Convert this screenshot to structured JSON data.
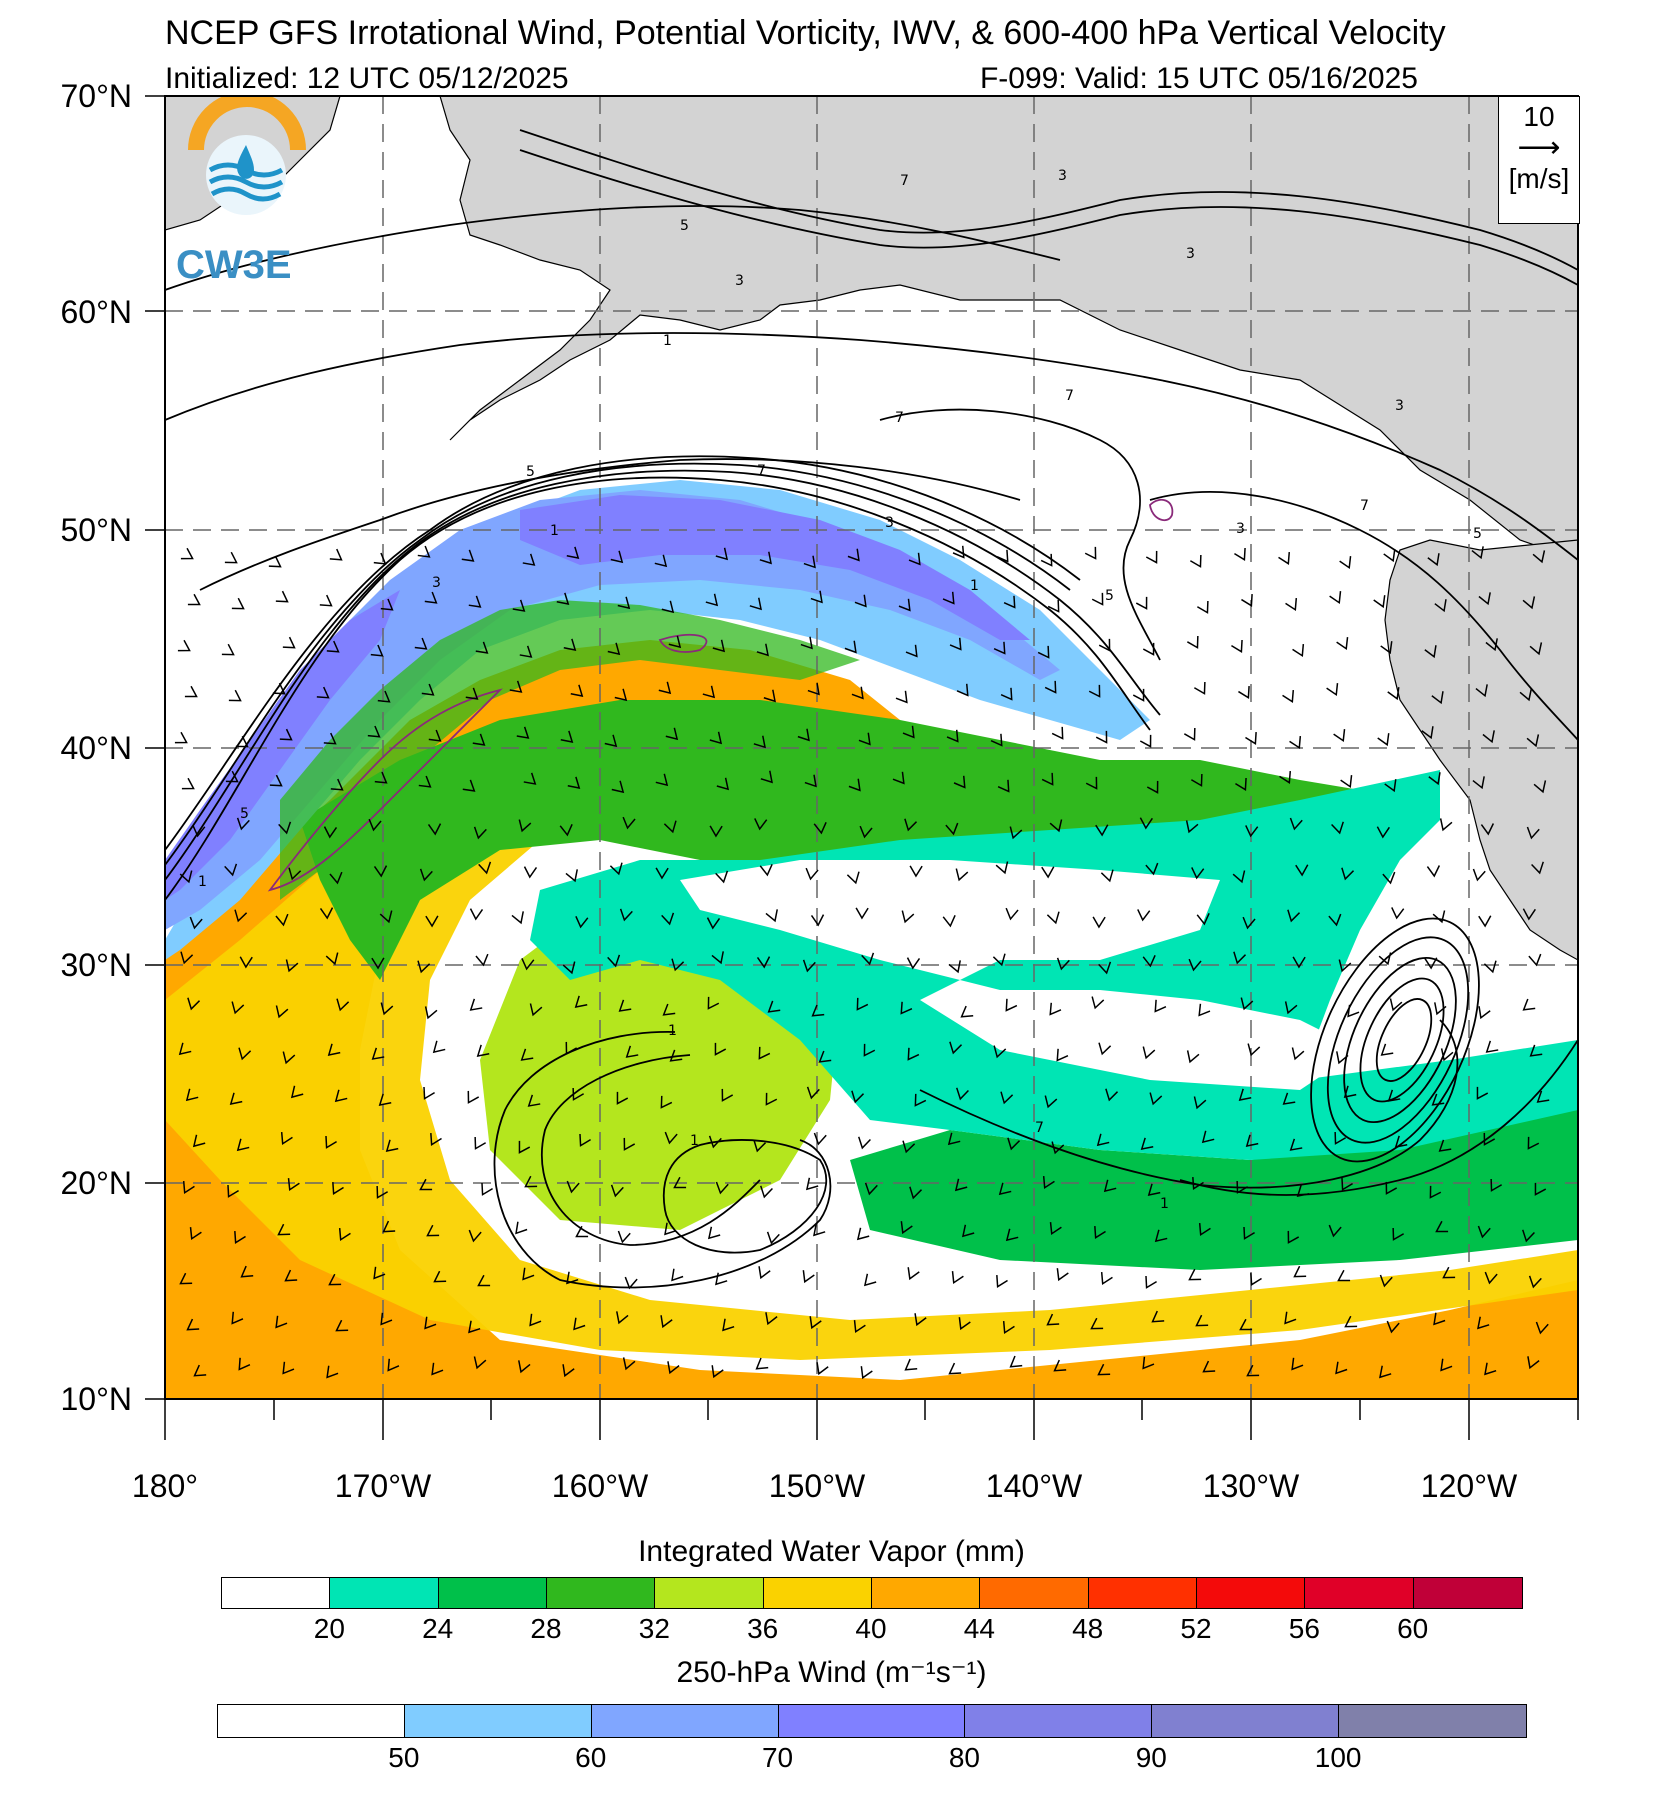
{
  "title": "NCEP GFS Irrotational Wind, Potential Vorticity, IWV, & 600-400 hPa Vertical Velocity",
  "initialized": "Initialized: 12 UTC 05/12/2025",
  "valid": "F-099: Valid: 15 UTC 05/16/2025",
  "logo": {
    "text": "CW3E",
    "icon": "water-drop-logo-icon",
    "ring_color": "#f5a623",
    "wave_color": "#1f93c9"
  },
  "vector_legend": {
    "value": "10",
    "unit": "[m/s]",
    "arrow": "right-arrow-icon"
  },
  "lat_labels": [
    "70°N",
    "60°N",
    "50°N",
    "40°N",
    "30°N",
    "20°N",
    "10°N"
  ],
  "lon_labels": [
    "180°",
    "170°W",
    "160°W",
    "150°W",
    "140°W",
    "130°W",
    "120°W"
  ],
  "iwv_bar": {
    "title": "Integrated Water Vapor (mm)",
    "ticks": [
      "20",
      "24",
      "28",
      "32",
      "36",
      "40",
      "44",
      "48",
      "52",
      "56",
      "60"
    ],
    "colors": [
      "#ffffff",
      "#00e5b4",
      "#00c04a",
      "#30b81e",
      "#b4e61e",
      "#fad200",
      "#ffa800",
      "#ff6a00",
      "#ff3000",
      "#f40a0a",
      "#e00028",
      "#c00038"
    ]
  },
  "wind_bar": {
    "title": "250-hPa Wind (m⁻¹s⁻¹)",
    "ticks": [
      "50",
      "60",
      "70",
      "80",
      "90",
      "100"
    ],
    "colors": [
      "#ffffff",
      "#80ccff",
      "#80a6ff",
      "#8080ff",
      "#8080e8",
      "#8080d0",
      "#8080aa"
    ]
  },
  "contour_labels": [
    "5",
    "3",
    "7",
    "3",
    "3",
    "7",
    "3",
    "1",
    "7",
    "7",
    "5",
    "3",
    "7",
    "3",
    "5",
    "1",
    "3",
    "5",
    "1",
    "5",
    "1",
    "1",
    "1",
    "7",
    "1"
  ],
  "land_color": "#d3d3d3"
}
